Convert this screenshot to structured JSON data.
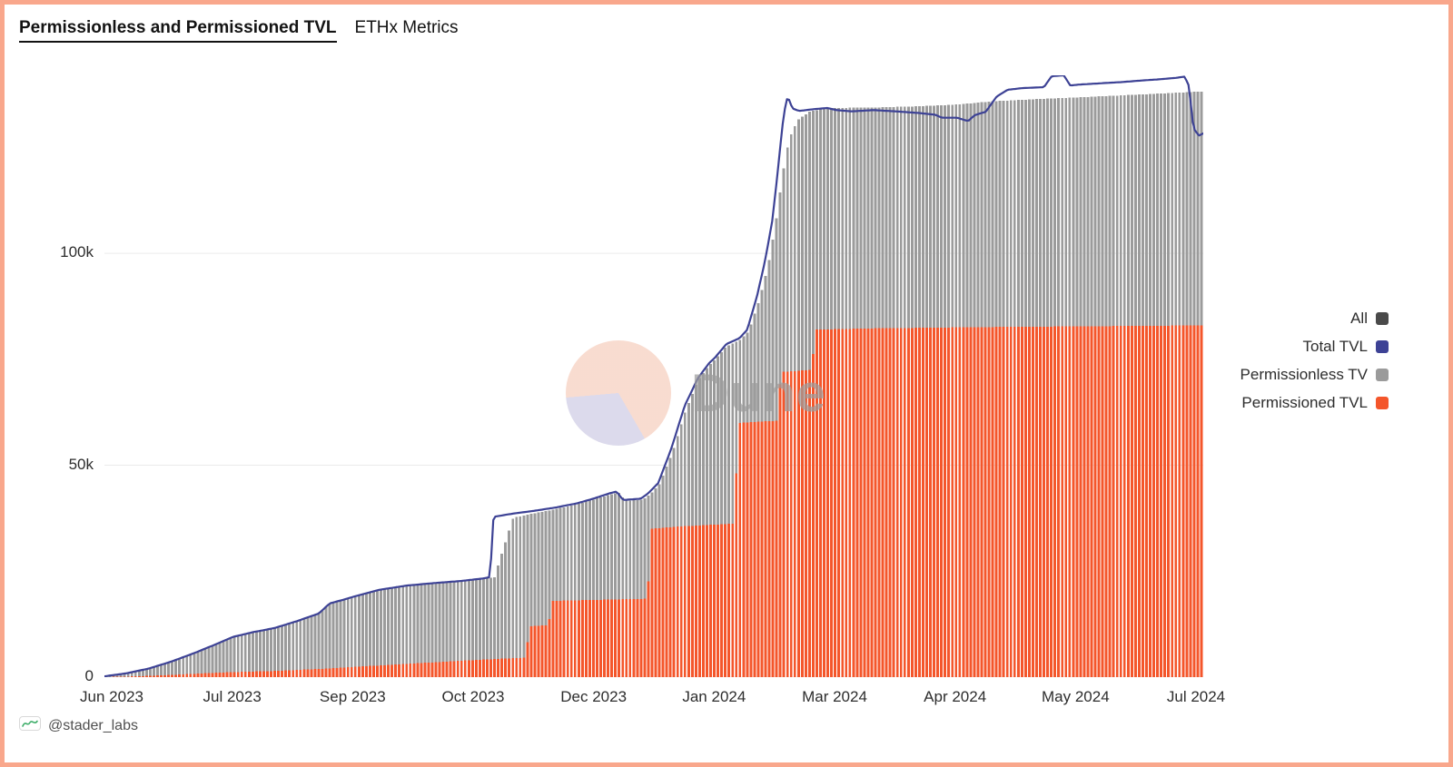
{
  "header": {
    "title": "Permissionless and Permissioned TVL",
    "subtitle": "ETHx Metrics"
  },
  "watermark": {
    "text": "Dune"
  },
  "footer": {
    "attribution": "@stader_labs"
  },
  "frame": {
    "border_color": "#f9a78c"
  },
  "legend": {
    "position": "right",
    "items": [
      {
        "label": "All",
        "color": "#4a4a4a"
      },
      {
        "label": "Total TVL",
        "color": "#3d4295"
      },
      {
        "label": "Permissionless TV",
        "color": "#9b9b9b"
      },
      {
        "label": "Permissioned TVL",
        "color": "#f4562b"
      }
    ]
  },
  "chart_data": {
    "type": "bar",
    "subtype": "stacked-daily-bars-with-line-overlay",
    "title": "Permissionless and Permissioned TVL — ETHx Metrics",
    "xlabel": "",
    "ylabel": "",
    "grid": "horizontal-light",
    "unit": "ETH, values in thousands (k)",
    "ylim_k": [
      0,
      142
    ],
    "x_domain_note": "x is normalized 0→1 spanning Jun 2023 (left) to Jul 2024 (right)",
    "x_axis_labels": [
      "Jun 2023",
      "Jul 2023",
      "Sep 2023",
      "Oct 2023",
      "Dec 2023",
      "Jan 2024",
      "Mar 2024",
      "Apr 2024",
      "May 2024",
      "Jul 2024"
    ],
    "y_ticks": [
      {
        "label": "0",
        "value_k": 0
      },
      {
        "label": "50k",
        "value_k": 50
      },
      {
        "label": "100k",
        "value_k": 100
      }
    ],
    "series": [
      {
        "name": "Permissioned TVL",
        "role": "bar-stack-bottom",
        "color": "#f4562b",
        "points_xk": [
          [
            0.0,
            0.0
          ],
          [
            0.03,
            0.2
          ],
          [
            0.06,
            0.5
          ],
          [
            0.09,
            0.9
          ],
          [
            0.117,
            1.2
          ],
          [
            0.16,
            1.5
          ],
          [
            0.2,
            2.0
          ],
          [
            0.24,
            2.6
          ],
          [
            0.28,
            3.2
          ],
          [
            0.32,
            3.8
          ],
          [
            0.35,
            4.2
          ],
          [
            0.383,
            4.6
          ],
          [
            0.387,
            12.0
          ],
          [
            0.404,
            12.3
          ],
          [
            0.408,
            18.0
          ],
          [
            0.494,
            18.5
          ],
          [
            0.498,
            35.0
          ],
          [
            0.52,
            35.5
          ],
          [
            0.556,
            36.0
          ],
          [
            0.573,
            36.2
          ],
          [
            0.577,
            60.0
          ],
          [
            0.612,
            60.5
          ],
          [
            0.616,
            72.0
          ],
          [
            0.643,
            72.5
          ],
          [
            0.648,
            82.0
          ],
          [
            0.7,
            82.3
          ],
          [
            0.8,
            82.6
          ],
          [
            0.9,
            82.8
          ],
          [
            1.0,
            83.0
          ]
        ]
      },
      {
        "name": "Permissionless TVL",
        "role": "bar-stack-top",
        "color": "#9b9b9b",
        "derivation": "stack_total_points_xk minus Permissioned TVL at same x"
      },
      {
        "name": "Total TVL",
        "role": "line",
        "color": "#3d4295",
        "points_xk": [
          [
            0.0,
            0.2
          ],
          [
            0.02,
            0.9
          ],
          [
            0.04,
            2.0
          ],
          [
            0.06,
            3.6
          ],
          [
            0.08,
            5.5
          ],
          [
            0.1,
            7.6
          ],
          [
            0.117,
            9.5
          ],
          [
            0.135,
            10.6
          ],
          [
            0.155,
            11.6
          ],
          [
            0.175,
            13.2
          ],
          [
            0.195,
            15.0
          ],
          [
            0.205,
            17.4
          ],
          [
            0.218,
            18.3
          ],
          [
            0.227,
            19.0
          ],
          [
            0.25,
            20.6
          ],
          [
            0.275,
            21.6
          ],
          [
            0.3,
            22.2
          ],
          [
            0.325,
            22.7
          ],
          [
            0.345,
            23.3
          ],
          [
            0.351,
            23.6
          ],
          [
            0.354,
            37.8
          ],
          [
            0.372,
            38.6
          ],
          [
            0.39,
            39.2
          ],
          [
            0.41,
            40.0
          ],
          [
            0.43,
            41.0
          ],
          [
            0.446,
            42.2
          ],
          [
            0.46,
            43.4
          ],
          [
            0.466,
            43.8
          ],
          [
            0.472,
            41.8
          ],
          [
            0.488,
            42.1
          ],
          [
            0.495,
            43.4
          ],
          [
            0.504,
            45.8
          ],
          [
            0.516,
            54.0
          ],
          [
            0.528,
            64.0
          ],
          [
            0.54,
            70.5
          ],
          [
            0.55,
            74.0
          ],
          [
            0.556,
            75.5
          ],
          [
            0.566,
            78.6
          ],
          [
            0.578,
            80.0
          ],
          [
            0.585,
            82.0
          ],
          [
            0.594,
            90.0
          ],
          [
            0.601,
            98.0
          ],
          [
            0.608,
            108.0
          ],
          [
            0.613,
            120.0
          ],
          [
            0.617,
            130.0
          ],
          [
            0.62,
            135.5
          ],
          [
            0.622,
            137.0
          ],
          [
            0.626,
            134.2
          ],
          [
            0.632,
            133.6
          ],
          [
            0.645,
            134.0
          ],
          [
            0.658,
            134.3
          ],
          [
            0.666,
            133.8
          ],
          [
            0.68,
            133.5
          ],
          [
            0.7,
            133.8
          ],
          [
            0.72,
            133.5
          ],
          [
            0.742,
            133.1
          ],
          [
            0.756,
            132.7
          ],
          [
            0.762,
            132.0
          ],
          [
            0.776,
            132.0
          ],
          [
            0.786,
            131.2
          ],
          [
            0.792,
            132.6
          ],
          [
            0.802,
            133.4
          ],
          [
            0.812,
            137.0
          ],
          [
            0.822,
            138.6
          ],
          [
            0.836,
            139.0
          ],
          [
            0.855,
            139.2
          ],
          [
            0.862,
            141.8
          ],
          [
            0.873,
            142.0
          ],
          [
            0.879,
            139.6
          ],
          [
            0.886,
            139.8
          ],
          [
            0.905,
            140.1
          ],
          [
            0.925,
            140.4
          ],
          [
            0.945,
            140.8
          ],
          [
            0.962,
            141.1
          ],
          [
            0.975,
            141.4
          ],
          [
            0.983,
            141.7
          ],
          [
            0.987,
            139.5
          ],
          [
            0.991,
            129.5
          ],
          [
            0.996,
            127.8
          ],
          [
            1.0,
            128.3
          ]
        ]
      }
    ],
    "stack_total_points_xk": [
      [
        0.0,
        0.2
      ],
      [
        0.02,
        0.9
      ],
      [
        0.04,
        2.0
      ],
      [
        0.06,
        3.6
      ],
      [
        0.08,
        5.5
      ],
      [
        0.1,
        7.6
      ],
      [
        0.117,
        9.5
      ],
      [
        0.135,
        10.6
      ],
      [
        0.155,
        11.6
      ],
      [
        0.175,
        13.2
      ],
      [
        0.195,
        15.0
      ],
      [
        0.205,
        17.4
      ],
      [
        0.218,
        18.3
      ],
      [
        0.227,
        19.0
      ],
      [
        0.25,
        20.6
      ],
      [
        0.275,
        21.6
      ],
      [
        0.3,
        22.2
      ],
      [
        0.325,
        22.7
      ],
      [
        0.345,
        23.2
      ],
      [
        0.355,
        23.6
      ],
      [
        0.372,
        37.6
      ],
      [
        0.39,
        38.6
      ],
      [
        0.41,
        39.6
      ],
      [
        0.43,
        40.8
      ],
      [
        0.446,
        42.0
      ],
      [
        0.462,
        43.2
      ],
      [
        0.468,
        43.6
      ],
      [
        0.474,
        41.6
      ],
      [
        0.49,
        41.9
      ],
      [
        0.497,
        43.2
      ],
      [
        0.505,
        45.5
      ],
      [
        0.517,
        53.0
      ],
      [
        0.529,
        63.0
      ],
      [
        0.54,
        70.0
      ],
      [
        0.55,
        73.5
      ],
      [
        0.556,
        75.0
      ],
      [
        0.566,
        78.0
      ],
      [
        0.578,
        79.5
      ],
      [
        0.586,
        81.5
      ],
      [
        0.596,
        89.0
      ],
      [
        0.604,
        97.0
      ],
      [
        0.611,
        107.0
      ],
      [
        0.617,
        118.0
      ],
      [
        0.623,
        127.0
      ],
      [
        0.631,
        131.5
      ],
      [
        0.642,
        133.5
      ],
      [
        0.66,
        134.3
      ],
      [
        0.7,
        134.4
      ],
      [
        0.74,
        134.7
      ],
      [
        0.775,
        135.1
      ],
      [
        0.81,
        135.9
      ],
      [
        0.85,
        136.4
      ],
      [
        0.885,
        136.8
      ],
      [
        0.92,
        137.2
      ],
      [
        0.96,
        137.7
      ],
      [
        1.0,
        138.2
      ]
    ]
  }
}
